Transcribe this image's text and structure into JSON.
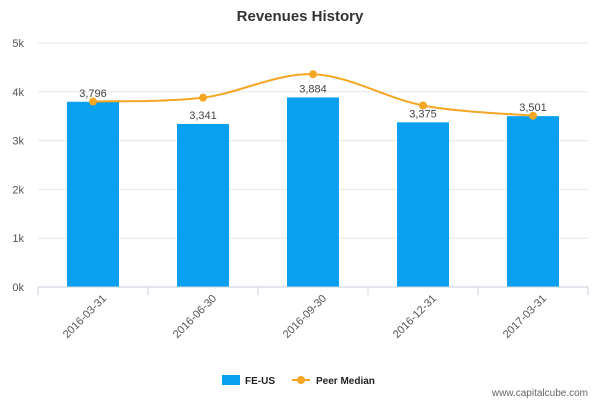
{
  "chart_data": {
    "type": "bar",
    "title": "Revenues History",
    "categories": [
      "2016-03-31",
      "2016-06-30",
      "2016-09-30",
      "2016-12-31",
      "2017-03-31"
    ],
    "series": [
      {
        "name": "FE-US",
        "kind": "bar",
        "values": [
          3796,
          3341,
          3884,
          3375,
          3501
        ]
      },
      {
        "name": "Peer Median",
        "kind": "line",
        "values": [
          3800,
          3880,
          4360,
          3720,
          3510
        ]
      }
    ],
    "data_labels": [
      "3,796",
      "3,341",
      "3,884",
      "3,375",
      "3,501"
    ],
    "yticks": [
      0,
      1000,
      2000,
      3000,
      4000,
      5000
    ],
    "ytick_labels": [
      "0k",
      "1k",
      "2k",
      "3k",
      "4k",
      "5k"
    ],
    "ylim": [
      0,
      5000
    ],
    "xlabel": "",
    "ylabel": "",
    "legend_position": "bottom-center",
    "colors": {
      "bar": "#0aa0f0",
      "line": "#f5a623"
    }
  },
  "footer": {
    "source": "www.capitalcube.com"
  }
}
